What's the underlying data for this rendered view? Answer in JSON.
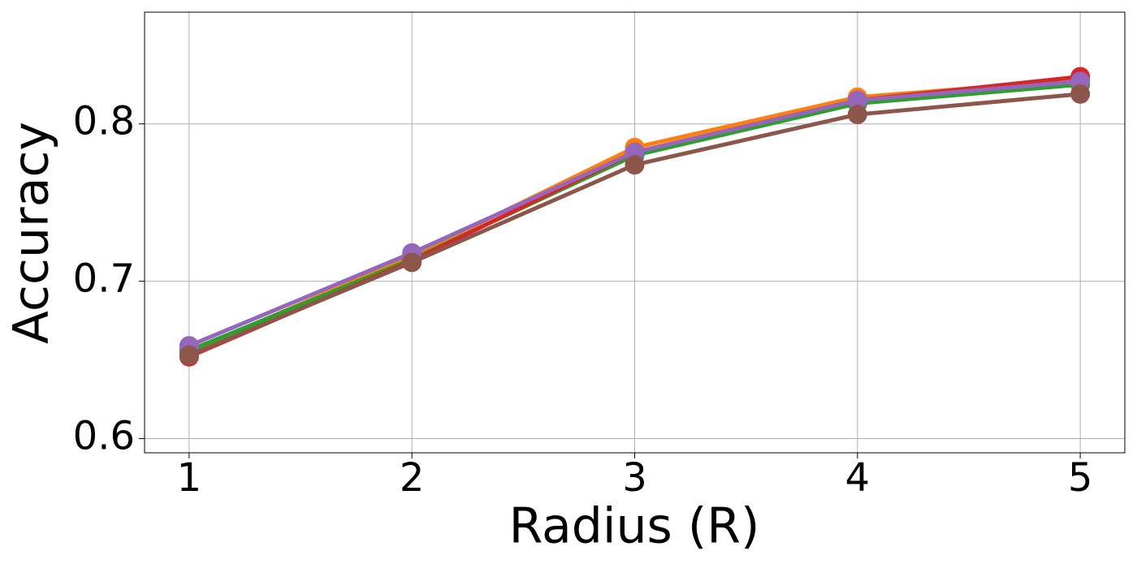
{
  "chart_data": {
    "type": "line",
    "xlabel": "Radius (R)",
    "ylabel": "Accuracy",
    "x": [
      1,
      2,
      3,
      4,
      5
    ],
    "series": [
      {
        "color": "#ff7f0e",
        "values": [
          0.655,
          0.716,
          0.785,
          0.817,
          0.828
        ]
      },
      {
        "color": "#2ca02c",
        "values": [
          0.656,
          0.714,
          0.78,
          0.813,
          0.825
        ]
      },
      {
        "color": "#d62728",
        "values": [
          0.652,
          0.713,
          0.782,
          0.815,
          0.83
        ]
      },
      {
        "color": "#9467bd",
        "values": [
          0.659,
          0.718,
          0.782,
          0.815,
          0.827
        ]
      },
      {
        "color": "#8c564b",
        "values": [
          0.653,
          0.712,
          0.774,
          0.806,
          0.819
        ]
      }
    ],
    "xlim": [
      0.8,
      5.2
    ],
    "ylim": [
      0.591,
      0.871
    ],
    "xticks": [
      1,
      2,
      3,
      4,
      5
    ],
    "yticks": [
      0.6,
      0.7,
      0.8
    ],
    "grid": true
  }
}
